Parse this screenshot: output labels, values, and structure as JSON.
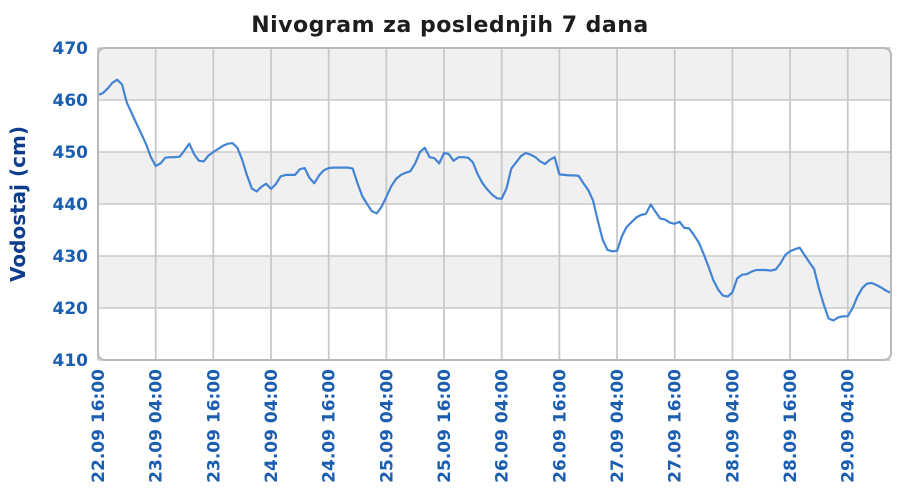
{
  "chart_data": {
    "type": "line",
    "title": "Nivogram za poslednjih 7 dana",
    "ylabel": "Vodostaj (cm)",
    "xlabel": "",
    "y_min": 410,
    "y_max": 470,
    "y_tick_step": 10,
    "y_tick_labels": [
      "410",
      "420",
      "430",
      "440",
      "450",
      "460",
      "470"
    ],
    "x_tick_labels": [
      "22.09 16:00",
      "23.09 04:00",
      "23.09 16:00",
      "24.09 04:00",
      "24.09 16:00",
      "25.09 04:00",
      "25.09 16:00",
      "26.09 04:00",
      "26.09 16:00",
      "27.09 04:00",
      "27.09 16:00",
      "28.09 04:00",
      "28.09 16:00",
      "29.09 04:00"
    ],
    "x_tick_hours": [
      0,
      12,
      24,
      36,
      48,
      60,
      72,
      84,
      96,
      108,
      120,
      132,
      144,
      156
    ],
    "total_hours": 165,
    "interval_hours": 1,
    "start_label": "22.09 16:00",
    "grid": true,
    "legend_position": "none",
    "alternating_bands": true,
    "series": [
      {
        "name": "Vodostaj (cm)",
        "values": [
          461.0,
          461.3,
          462.2,
          463.3,
          463.9,
          463.0,
          459.5,
          457.5,
          455.5,
          453.5,
          451.5,
          449.0,
          447.3,
          447.8,
          448.9,
          449.0,
          449.0,
          449.1,
          450.3,
          451.6,
          449.6,
          448.3,
          448.2,
          449.3,
          450.0,
          450.6,
          451.2,
          451.6,
          451.7,
          450.8,
          448.5,
          445.5,
          443.0,
          442.4,
          443.3,
          443.9,
          442.9,
          443.8,
          445.3,
          445.6,
          445.6,
          445.6,
          446.7,
          446.9,
          445.0,
          444.0,
          445.5,
          446.5,
          446.9,
          447.0,
          447.0,
          447.0,
          447.0,
          446.8,
          444.0,
          441.5,
          440.0,
          438.6,
          438.2,
          439.5,
          441.4,
          443.4,
          444.8,
          445.6,
          446.0,
          446.3,
          447.8,
          450.0,
          450.8,
          449.0,
          448.8,
          447.8,
          449.8,
          449.6,
          448.3,
          449.0,
          449.0,
          448.9,
          448.0,
          445.7,
          444.0,
          442.8,
          441.8,
          441.1,
          441.0,
          443.0,
          446.8,
          448.0,
          449.2,
          449.8,
          449.5,
          449.0,
          448.2,
          447.7,
          448.5,
          449.0,
          445.7,
          445.6,
          445.5,
          445.5,
          445.4,
          444.0,
          442.7,
          440.7,
          436.8,
          433.2,
          431.2,
          430.9,
          431.0,
          433.8,
          435.6,
          436.5,
          437.4,
          437.9,
          438.1,
          439.9,
          438.5,
          437.2,
          437.0,
          436.4,
          436.2,
          436.6,
          435.4,
          435.3,
          434.0,
          432.6,
          430.4,
          428.0,
          425.4,
          423.6,
          422.4,
          422.2,
          423.0,
          425.7,
          426.4,
          426.5,
          427.0,
          427.3,
          427.3,
          427.3,
          427.2,
          427.4,
          428.6,
          430.2,
          430.9,
          431.3,
          431.6,
          430.2,
          428.8,
          427.5,
          423.8,
          420.7,
          418.0,
          417.6,
          418.2,
          418.4,
          418.4,
          420.0,
          422.2,
          423.8,
          424.7,
          424.8,
          424.4,
          423.9,
          423.3,
          422.9
        ]
      }
    ],
    "colors": {
      "line": "#4384d4",
      "tick_label": "#1b5eb0",
      "axis_title": "#0e3d8f",
      "title": "#1d1d1d",
      "band": "#f0f0f0",
      "grid": "#c9c9c9",
      "border": "#b9b9b9",
      "background": "#ffffff"
    }
  }
}
